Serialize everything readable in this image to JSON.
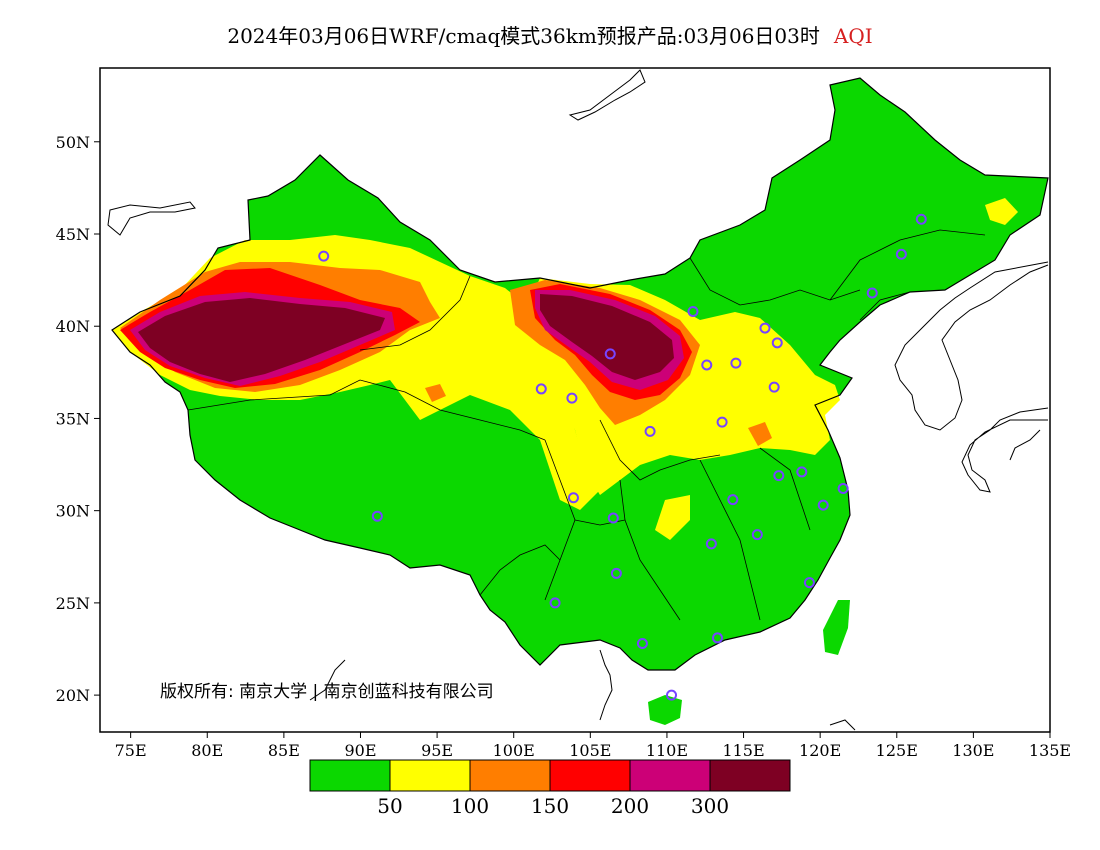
{
  "title": {
    "main": "2024年03月06日WRF/cmaq模式36km预报产品:03月06日03时",
    "pollutant": "AQI",
    "pollutant_color": "#d62020"
  },
  "copyright": "版权所有: 南京大学 | 南京创蓝科技有限公司",
  "axes": {
    "x_ticks": [
      "75E",
      "80E",
      "85E",
      "90E",
      "95E",
      "100E",
      "105E",
      "110E",
      "115E",
      "120E",
      "125E",
      "130E",
      "135E"
    ],
    "y_ticks": [
      "20N",
      "25N",
      "30N",
      "35N",
      "40N",
      "45N",
      "50N"
    ],
    "lon_range": [
      73,
      135
    ],
    "lat_range": [
      18,
      54
    ]
  },
  "legend": {
    "colors": [
      "#0bd800",
      "#ffff00",
      "#ff7e00",
      "#ff0000",
      "#cc0077",
      "#7e0023"
    ],
    "labels": [
      "50",
      "100",
      "150",
      "200",
      "300"
    ]
  },
  "palette": {
    "background": "#ffffff",
    "border": "#000000",
    "station_marker": "#7744ff"
  }
}
